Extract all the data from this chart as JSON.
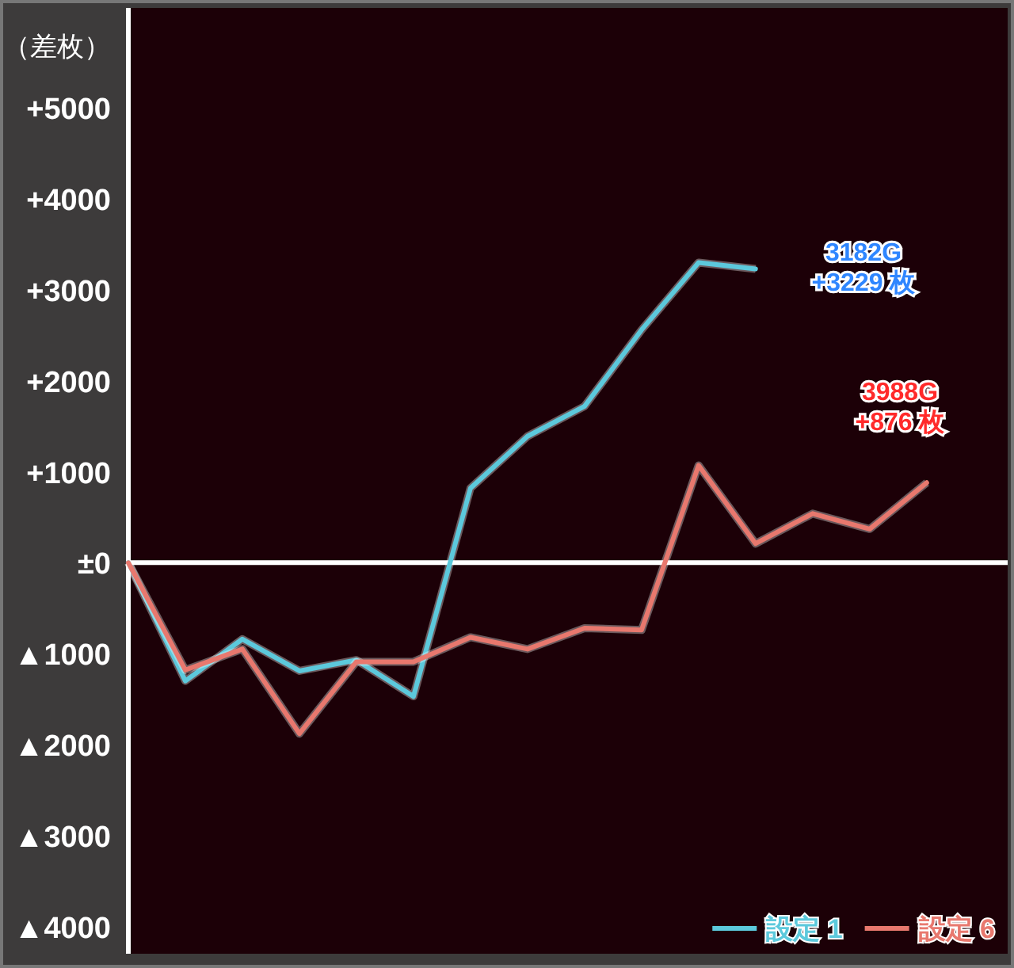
{
  "chart_data": {
    "type": "line",
    "ylabel": "（差枚）",
    "categories": [
      null,
      null,
      null,
      null,
      null,
      null,
      null,
      null,
      null,
      null,
      null,
      null,
      null,
      null,
      null
    ],
    "series": [
      {
        "name": "設定 1",
        "color": "#5cc9dc",
        "values": [
          0,
          -1300,
          -840,
          -1190,
          -1070,
          -1470,
          820,
          1390,
          1720,
          2560,
          3300,
          3230,
          null,
          null,
          null
        ]
      },
      {
        "name": "設定 6",
        "color": "#e8786e",
        "values": [
          0,
          -1180,
          -950,
          -1880,
          -1090,
          -1090,
          -820,
          -950,
          -720,
          -740,
          1070,
          210,
          540,
          370,
          880
        ]
      }
    ],
    "ylim": [
      -4300,
      6100
    ],
    "yticks": [
      {
        "value": 5000,
        "label": "+5000"
      },
      {
        "value": 4000,
        "label": "+4000"
      },
      {
        "value": 3000,
        "label": "+3000"
      },
      {
        "value": 2000,
        "label": "+2000"
      },
      {
        "value": 1000,
        "label": "+1000"
      },
      {
        "value": 0,
        "label": "±0"
      },
      {
        "value": -1000,
        "label": "▲1000"
      },
      {
        "value": -2000,
        "label": "▲2000"
      },
      {
        "value": -3000,
        "label": "▲3000"
      },
      {
        "value": -4000,
        "label": "▲4000"
      }
    ],
    "ref_lines": [
      {
        "axis": "y",
        "value": 0,
        "color": "#ffffff"
      }
    ],
    "annotations": [
      "3182G\n+3229 枚",
      "3988G\n+876 枚"
    ],
    "legend": "bottom right",
    "grid": false,
    "tick_labels": "y"
  }
}
